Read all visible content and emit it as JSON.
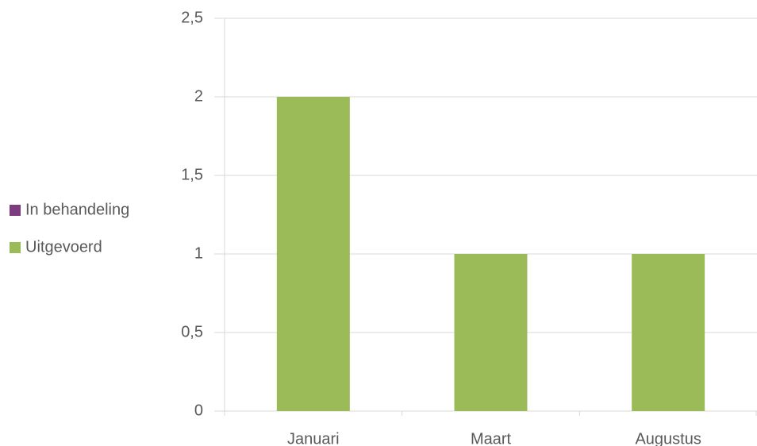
{
  "chart_data": {
    "type": "stacked_bar",
    "categories": [
      "Januari",
      "Maart",
      "Augustus"
    ],
    "series": [
      {
        "name": "In behandeling",
        "color": "#7d3c7e",
        "values": [
          0,
          0,
          0
        ]
      },
      {
        "name": "Uitgevoerd",
        "color": "#9bbb59",
        "values": [
          2,
          1,
          1
        ]
      }
    ],
    "ylim": [
      0,
      2.5
    ],
    "yticks": [
      0,
      {
        "value": 0.5,
        "label": "0,5"
      },
      1,
      {
        "value": 1.5,
        "label": "1,5"
      },
      2,
      {
        "value": 2.5,
        "label": "2,5"
      }
    ],
    "grid": true,
    "legend": "left"
  }
}
